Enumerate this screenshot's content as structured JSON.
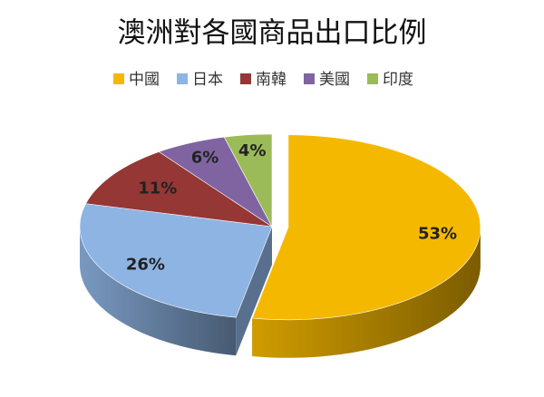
{
  "chart_data": {
    "type": "pie",
    "title": "澳洲對各國商品出口比例",
    "categories": [
      "中國",
      "日本",
      "南韓",
      "美國",
      "印度"
    ],
    "values": [
      53,
      26,
      11,
      6,
      4
    ],
    "value_labels": [
      "53%",
      "26%",
      "11%",
      "6%",
      "4%"
    ],
    "colors": [
      "#f5b800",
      "#8eb4e3",
      "#953735",
      "#8064a2",
      "#9bbb59"
    ],
    "explode": [
      true,
      false,
      false,
      false,
      false
    ],
    "legend": "top",
    "three_d": true
  }
}
